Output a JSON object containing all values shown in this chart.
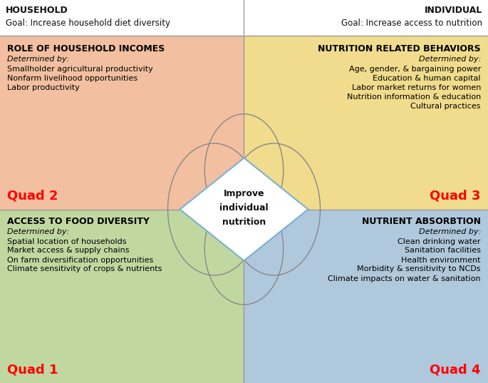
{
  "header_left_line1": "HOUSEHOLD",
  "header_left_line2": "Goal: Increase household diet diversity",
  "header_right_line1": "INDIVIDUAL",
  "header_right_line2": "Goal: Increase access to nutrition",
  "quad2_title": "ROLE OF HOUSEHOLD INCOMES",
  "quad2_det": "Determined by:",
  "quad2_items": [
    "Smallholder agricultural productivity",
    "Nonfarm livelihood opportunities",
    "Labor productivity"
  ],
  "quad2_label": "Quad 2",
  "quad2_color": "#F2C0A0",
  "quad3_title": "NUTRITION RELATED BEHAVIORS",
  "quad3_det": "Determined by:",
  "quad3_items": [
    "Age, gender, & bargaining power",
    "Education & human capital",
    "Labor market returns for women",
    "Nutrition information & education",
    "Cultural practices"
  ],
  "quad3_label": "Quad 3",
  "quad3_color": "#F0DC8C",
  "quad1_title": "ACCESS TO FOOD DIVERSITY",
  "quad1_det": "Determined by:",
  "quad1_items": [
    "Spatial location of households",
    "Market access & supply chains",
    "On farm diversification opportunities",
    "Climate sensitivity of crops & nutrients"
  ],
  "quad1_label": "Quad 1",
  "quad1_color": "#C0D8A0",
  "quad4_title": "NUTRIENT ABSORBTION",
  "quad4_det": "Determined by:",
  "quad4_items": [
    "Clean drinking water",
    "Sanitation facilities",
    "Health environment",
    "Morbidity & sensitivity to NCDs",
    "Climate impacts on water & sanitation"
  ],
  "quad4_label": "Quad 4",
  "quad4_color": "#B0C8DC",
  "center_text": [
    "Improve",
    "individual",
    "nutrition"
  ],
  "quad_label_color": "#FF0000",
  "border_color": "#999999",
  "text_color": "#111111",
  "divider_color": "#999999",
  "ellipse_color": "#888888",
  "diamond_edge_color": "#7BAFD4"
}
